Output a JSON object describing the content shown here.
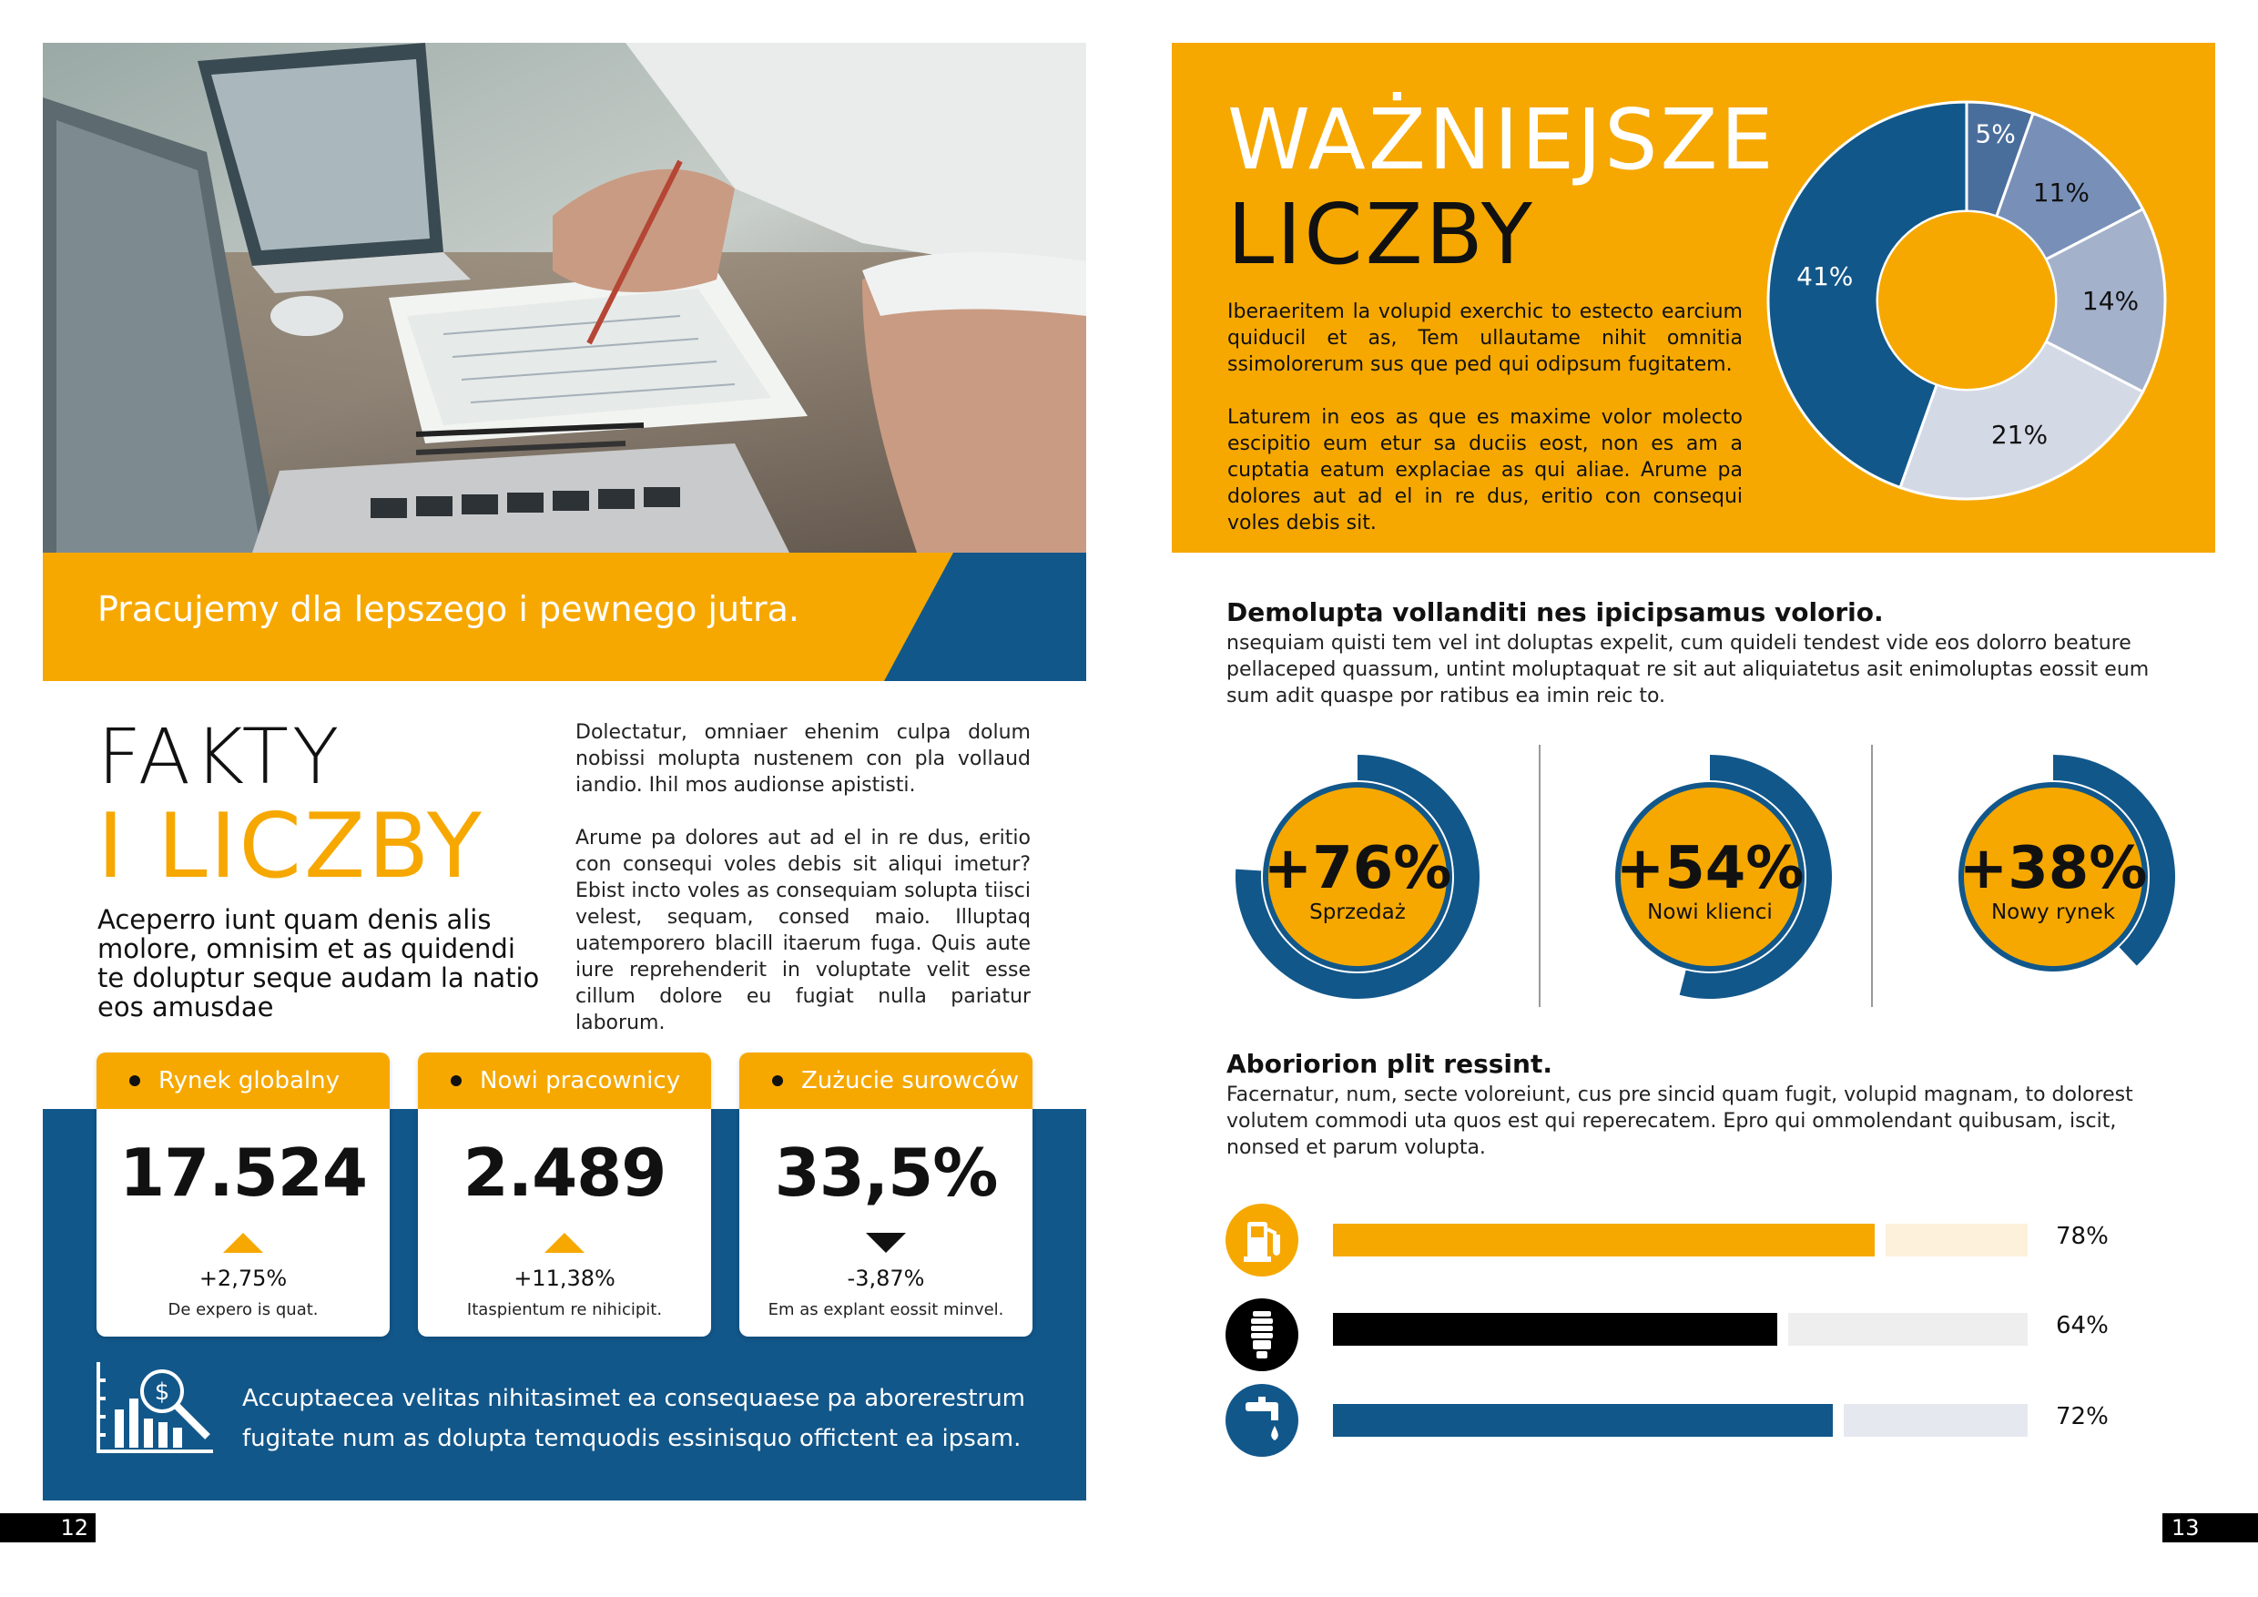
{
  "left_page": {
    "tagline": "Pracujemy dla lepszego i pewnego jutra.",
    "heading_line1": "FAKTY",
    "heading_line2": "I LICZBY",
    "lead": "Aceperro iunt quam denis alis molore, omnisim et as quidendi te doluptur seque audam la natio eos amusdae",
    "column_paragraphs": [
      "Dolectatur, omniaer ehenim culpa dolum nobissi molupta nustenem con pla vollaud iandio. Ihil mos audionse apististi.",
      "Arume pa dolores aut ad el in re dus, eritio con consequi voles debis sit aliqui imetur? Ebist incto voles as consequiam solupta tiisci velest, sequam, consed maio. Illuptaq uatemporero blacill itaerum fuga. Quis aute iure reprehenderit in voluptate velit esse cillum dolore eu fugiat nulla pariatur laborum."
    ],
    "stats": [
      {
        "label": "Rynek globalny",
        "value": "17.524",
        "trend": "up",
        "change": "+2,75%",
        "note": "De expero is quat."
      },
      {
        "label": "Nowi pracownicy",
        "value": "2.489",
        "trend": "up",
        "change": "+11,38%",
        "note": "Itaspientum re nihicipit."
      },
      {
        "label": "Zużucie surowców",
        "value": "33,5%",
        "trend": "down",
        "change": "-3,87%",
        "note": "Em as explant eossit minvel."
      }
    ],
    "panel_text": "Accuptaecea velitas nihitasimet ea consequaese pa aborerestrum fugitate num as dolupta temquodis essinisquo offictent ea ipsam.",
    "page_number": "12"
  },
  "right_page": {
    "heading_line1": "WAŻNIEJSZE",
    "heading_line2": "LICZBY",
    "intro_paragraphs": [
      "Iberaeritem la volupid exerchic to estecto earcium quiducil et as, Tem ullautame nihit omnitia ssimolorerum sus que ped qui odipsum fugitatem.",
      "Laturem in eos as que es maxime volor molecto escipitio eum etur sa duciis eost, non es am a cuptatia eatum explaciae as qui aliae. Arume pa dolores aut ad el in re dus, eritio con consequi voles debis sit."
    ],
    "section1_heading": "Demolupta vollanditi nes ipicipsamus volorio.",
    "section1_text": "nsequiam quisti tem vel int doluptas expelit, cum quideli tendest vide eos dolorro beature pellaceped quassum, untint moluptaquat re sit aut aliquiatetus asit enimoluptas eossit eum sum adit quaspe por ratibus ea imin reic to.",
    "rings": [
      {
        "value": "+76%",
        "label": "Sprzedaż",
        "fill": 0.76
      },
      {
        "value": "+54%",
        "label": "Nowi klienci",
        "fill": 0.54
      },
      {
        "value": "+38%",
        "label": "Nowy rynek",
        "fill": 0.38
      }
    ],
    "section2_heading": "Aboriorion plit ressint.",
    "section2_text": "Facernatur, num, secte voloreiunt, cus pre sincid quam fugit, volupid magnam, to dolorest volutem commodi uta quos est qui reperecatem.  Epro qui ommolendant quibusam, iscit, nonsed et parum volupta.",
    "bars": [
      {
        "icon": "fuel-pump-icon",
        "pct_label": "78%",
        "fill": 0.78,
        "color": "#f6a800",
        "track": "#fdf1dc",
        "icon_bg": "#f6a800"
      },
      {
        "icon": "light-bulb-icon",
        "pct_label": "64%",
        "fill": 0.64,
        "color": "#000000",
        "track": "#eeeeee",
        "icon_bg": "#000000"
      },
      {
        "icon": "water-tap-icon",
        "pct_label": "72%",
        "fill": 0.72,
        "color": "#12578a",
        "track": "#e5e8ef",
        "icon_bg": "#12578a"
      }
    ],
    "page_number": "13"
  },
  "donut_chart": {
    "type": "pie",
    "values": [
      5,
      11,
      14,
      21,
      41
    ],
    "labels": [
      "5%",
      "11%",
      "14%",
      "21%",
      "41%"
    ],
    "colors": [
      "#4a6e9c",
      "#7890b8",
      "#a4b1cb",
      "#d4d9e6",
      "#12578a"
    ],
    "label_colors": [
      "#ffffff",
      "#111111",
      "#111111",
      "#111111",
      "#ffffff"
    ]
  },
  "colors": {
    "accent": "#f6a800",
    "brand_blue": "#12578a"
  }
}
